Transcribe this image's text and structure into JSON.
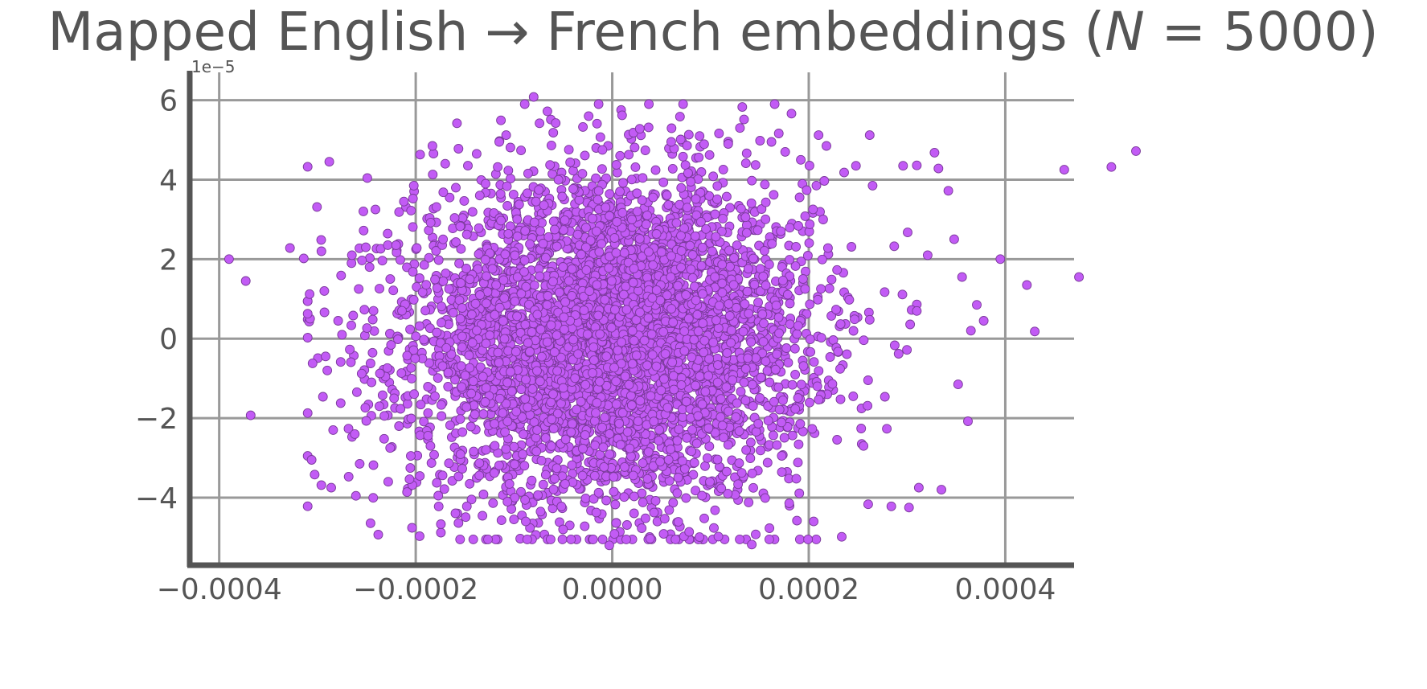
{
  "chart_data": {
    "type": "scatter",
    "title": "Mapped English → French embeddings (N = 5000)",
    "title_parts": {
      "pre": "Mapped English → French embeddings (",
      "var": "N",
      "eq": " = 5000)"
    },
    "xlabel": "",
    "ylabel": "",
    "y_offset_label": "1e−5",
    "xlim": [
      -0.00043,
      0.00047
    ],
    "ylim": [
      -5.7,
      6.7
    ],
    "x_scale": 1,
    "y_scale": 1e-05,
    "xticks": [
      -0.0004,
      -0.0002,
      0.0,
      0.0002,
      0.0004
    ],
    "xtick_labels": [
      "−0.0004",
      "−0.0002",
      "0.0000",
      "0.0002",
      "0.0004"
    ],
    "yticks": [
      -4,
      -2,
      0,
      2,
      4,
      6
    ],
    "ytick_labels": [
      "−4",
      "−2",
      "0",
      "2",
      "4",
      "6"
    ],
    "grid": true,
    "legend": "none",
    "total_points": 5000,
    "marker_color": "#c25bf5",
    "marker_edge_color": "#7a3a9a",
    "points": [
      [
        -0.00039,
        2.0
      ],
      [
        -0.000373,
        1.45
      ],
      [
        -0.000368,
        -1.93
      ],
      [
        -0.000328,
        2.28
      ],
      [
        -0.000314,
        2.02
      ],
      [
        -0.000308,
        1.12
      ],
      [
        -0.000306,
        -3.05
      ],
      [
        -0.000305,
        -0.62
      ],
      [
        -0.000296,
        2.2
      ],
      [
        -0.000293,
        1.2
      ],
      [
        -0.00029,
        -0.8
      ],
      [
        -0.000288,
        4.45
      ],
      [
        -0.000286,
        -3.75
      ],
      [
        -0.000284,
        -2.3
      ],
      [
        -0.000279,
        0.45
      ],
      [
        -0.000275,
        0.1
      ],
      [
        -0.000265,
        2.1
      ],
      [
        -0.000262,
        -2.4
      ],
      [
        -0.000258,
        1.25
      ],
      [
        -0.000257,
        -3.15
      ],
      [
        -0.000255,
        -0.88
      ],
      [
        -0.000253,
        2.72
      ],
      [
        -0.000247,
        1.8
      ],
      [
        -0.000245,
        -1.1
      ],
      [
        -0.000243,
        0.7
      ],
      [
        -0.000241,
        3.25
      ],
      [
        -0.000237,
        -1.7
      ],
      [
        -0.000228,
        -3.6
      ],
      [
        -0.000226,
        -2.75
      ],
      [
        -0.000222,
        -1.5
      ],
      [
        -0.00022,
        2.35
      ],
      [
        -0.000217,
        -2.2
      ],
      [
        -0.000214,
        0.7
      ],
      [
        -0.000212,
        3.45
      ],
      [
        -0.000205,
        -2.95
      ],
      [
        -0.000202,
        3.85
      ],
      [
        -0.000196,
        -4.97
      ],
      [
        -0.000185,
        -2.7
      ],
      [
        -0.000183,
        4.85
      ],
      [
        -0.000177,
        -3.95
      ],
      [
        -0.00017,
        4.4
      ],
      [
        -0.000165,
        -2.18
      ],
      [
        -0.000158,
        5.42
      ],
      [
        -0.000148,
        -4.22
      ],
      [
        -0.000138,
        4.65
      ],
      [
        -0.00012,
        -3.38
      ],
      [
        -0.000115,
        4.95
      ],
      [
        -0.000108,
        5.12
      ],
      [
        -0.0001,
        -4.55
      ],
      [
        -8.8e-05,
        -4.6
      ],
      [
        -8e-05,
        6.08
      ],
      [
        -7.4e-05,
        5.42
      ],
      [
        -6.6e-05,
        5.72
      ],
      [
        -6e-05,
        5.18
      ],
      [
        -5e-05,
        -4.8
      ],
      [
        -2.8e-05,
        -4.72
      ],
      [
        -1e-05,
        4.75
      ],
      [
        -3e-06,
        -5.2
      ],
      [
        8e-06,
        4.6
      ],
      [
        1e-05,
        5.62
      ],
      [
        2.8e-05,
        5.28
      ],
      [
        3e-05,
        -4.77
      ],
      [
        6e-05,
        4.95
      ],
      [
        7.2e-05,
        4.58
      ],
      [
        0.000108,
        -4.98
      ],
      [
        0.000118,
        4.9
      ],
      [
        0.00013,
        5.3
      ],
      [
        0.000142,
        -5.18
      ],
      [
        0.00016,
        -4.77
      ],
      [
        0.000162,
        4.95
      ],
      [
        0.000176,
        4.7
      ],
      [
        0.000188,
        -4.58
      ],
      [
        0.000205,
        -4.6
      ],
      [
        0.00021,
        5.12
      ],
      [
        0.000218,
        4.85
      ],
      [
        0.000236,
        4.18
      ],
      [
        0.000248,
        4.35
      ],
      [
        0.000262,
        5.12
      ],
      [
        0.000265,
        3.85
      ],
      [
        0.000284,
        -4.22
      ],
      [
        0.000296,
        4.35
      ],
      [
        0.000302,
        -4.25
      ],
      [
        0.000312,
        -3.75
      ],
      [
        0.000321,
        2.1
      ],
      [
        0.000328,
        4.68
      ],
      [
        0.000332,
        4.28
      ],
      [
        0.000335,
        -3.8
      ],
      [
        0.000342,
        3.72
      ],
      [
        0.000348,
        2.5
      ],
      [
        0.000352,
        -1.15
      ],
      [
        0.000356,
        1.55
      ],
      [
        0.000362,
        -2.08
      ],
      [
        0.000365,
        0.2
      ],
      [
        0.000371,
        0.85
      ],
      [
        0.000378,
        0.45
      ],
      [
        0.000395,
        2.0
      ],
      [
        0.000422,
        1.35
      ],
      [
        0.00043,
        0.18
      ],
      [
        0.00046,
        4.25
      ],
      [
        0.000475,
        1.55
      ],
      [
        0.000508,
        4.32
      ],
      [
        0.000533,
        4.72
      ]
    ],
    "cloud": {
      "center": [
        0.0,
        0.0
      ],
      "std": [
        0.0001,
        2.0
      ]
    }
  }
}
